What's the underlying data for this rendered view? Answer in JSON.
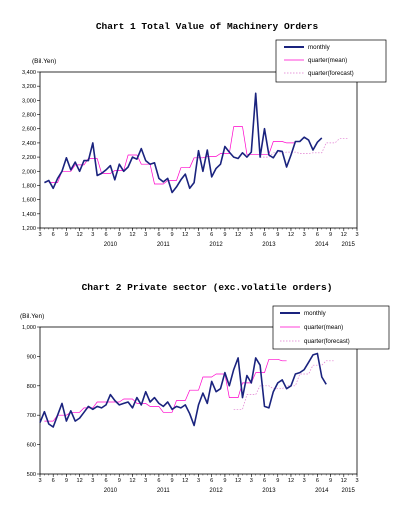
{
  "chart_data": [
    {
      "type": "line",
      "title": "Chart 1 Total Value of Machinery Orders",
      "ylabel": "(Bil.Yen)",
      "ylim": [
        1200,
        3400
      ],
      "yticks": [
        "1,200",
        "1,400",
        "1,600",
        "1,800",
        "2,000",
        "2,200",
        "2,400",
        "2,600",
        "2,800",
        "3,000",
        "3,200",
        "3,400"
      ],
      "x_month_ticks": [
        "3",
        "6",
        "9",
        "12",
        "3",
        "6",
        "9",
        "12",
        "3",
        "6",
        "9",
        "12",
        "3",
        "6",
        "9",
        "12",
        "3",
        "6",
        "9",
        "12",
        "3",
        "6",
        "9",
        "12",
        "3"
      ],
      "x_year_labels": [
        "2010",
        "2011",
        "2012",
        "2013",
        "2014",
        "2015"
      ],
      "legend": [
        "monthly",
        "quarter(mean)",
        "quarter(forecast)"
      ],
      "colors": {
        "monthly": "#1a237e",
        "quarter_mean": "#ff00cc",
        "quarter_forecast": "#e07ad0"
      },
      "series": [
        {
          "name": "monthly",
          "start": "2009-04",
          "values": [
            1840,
            1870,
            1760,
            1900,
            2000,
            2190,
            2020,
            2130,
            2000,
            2150,
            2150,
            2400,
            1940,
            1970,
            2020,
            2080,
            1880,
            2100,
            2000,
            2060,
            2200,
            2170,
            2320,
            2150,
            2100,
            2120,
            1900,
            1850,
            1900,
            1700,
            1780,
            1880,
            1960,
            1760,
            1840,
            2290,
            2000,
            2300,
            1920,
            2040,
            2100,
            2350,
            2270,
            2200,
            2180,
            2260,
            2200,
            2270,
            3100,
            2200,
            2600,
            2230,
            2190,
            2290,
            2280,
            2060,
            2230,
            2420,
            2420,
            2480,
            2440,
            2300,
            2410,
            2470
          ]
        },
        {
          "name": "quarter(mean)",
          "start": "2009-05",
          "values": [
            1840,
            1840,
            1840,
            2000,
            2000,
            2000,
            2090,
            2090,
            2090,
            2180,
            2180,
            2180,
            1970,
            1970,
            1970,
            2010,
            2010,
            2010,
            2230,
            2230,
            2230,
            2100,
            2100,
            2100,
            1820,
            1820,
            1820,
            1870,
            1870,
            1870,
            2050,
            2050,
            2050,
            2190,
            2190,
            2190,
            2210,
            2210,
            2210,
            2250,
            2250,
            2250,
            2630,
            2630,
            2630,
            2240,
            2240,
            2240,
            2240,
            2240,
            2240,
            2420,
            2420,
            2420,
            2400,
            2400,
            2400
          ]
        },
        {
          "name": "quarter(forecast)",
          "start": "2013-05",
          "values": [
            2200,
            2200,
            2200,
            2260,
            2260,
            2260,
            2270,
            2270,
            2270,
            2250,
            2250,
            2250,
            2260,
            2260,
            2260,
            2400,
            2400,
            2400,
            2460,
            2460,
            2460
          ]
        }
      ]
    },
    {
      "type": "line",
      "title": "Chart 2 Private sector (exc.volatile orders)",
      "ylabel": "(Bil.Yen)",
      "ylim": [
        500,
        1000
      ],
      "yticks": [
        "500",
        "600",
        "700",
        "800",
        "900",
        "1,000"
      ],
      "x_month_ticks": [
        "3",
        "6",
        "9",
        "12",
        "3",
        "6",
        "9",
        "12",
        "3",
        "6",
        "9",
        "12",
        "3",
        "6",
        "9",
        "12",
        "3",
        "6",
        "9",
        "12",
        "3",
        "6",
        "9",
        "12",
        "3"
      ],
      "x_year_labels": [
        "2010",
        "2011",
        "2012",
        "2013",
        "2014",
        "2015"
      ],
      "legend": [
        "monthly",
        "quarter(mean)",
        "quarter(forecast)"
      ],
      "colors": {
        "monthly": "#1a237e",
        "quarter_mean": "#ff00cc",
        "quarter_forecast": "#e07ad0"
      },
      "series": [
        {
          "name": "monthly",
          "start": "2009-03",
          "values": [
            675,
            712,
            670,
            660,
            700,
            740,
            680,
            715,
            680,
            690,
            710,
            730,
            720,
            730,
            725,
            735,
            770,
            750,
            735,
            740,
            745,
            725,
            760,
            735,
            780,
            745,
            760,
            740,
            730,
            745,
            720,
            730,
            725,
            735,
            705,
            665,
            735,
            775,
            740,
            815,
            780,
            790,
            845,
            800,
            855,
            895,
            760,
            835,
            810,
            895,
            870,
            730,
            725,
            780,
            810,
            820,
            790,
            800,
            840,
            845,
            855,
            880,
            905,
            910,
            830,
            805
          ]
        },
        {
          "name": "quarter(mean)",
          "start": "2009-04",
          "values": [
            680,
            680,
            680,
            700,
            700,
            700,
            710,
            710,
            710,
            725,
            725,
            725,
            745,
            745,
            745,
            745,
            745,
            745,
            755,
            755,
            755,
            740,
            740,
            740,
            730,
            730,
            730,
            710,
            710,
            710,
            750,
            750,
            750,
            785,
            785,
            785,
            830,
            830,
            830,
            840,
            840,
            840,
            760,
            760,
            760,
            810,
            810,
            810,
            845,
            845,
            845,
            890,
            890,
            890,
            885,
            885
          ]
        },
        {
          "name": "quarter(forecast)",
          "start": "2012-11",
          "values": [
            720,
            720,
            720,
            770,
            770,
            770,
            800,
            800,
            800,
            790,
            790,
            790,
            800,
            800,
            800,
            840,
            840,
            840,
            870,
            870,
            870,
            885,
            885,
            885
          ]
        }
      ]
    }
  ]
}
